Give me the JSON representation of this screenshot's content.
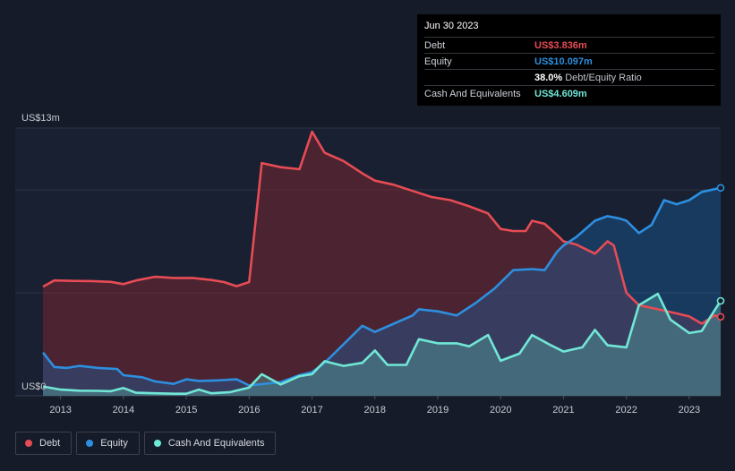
{
  "tooltip": {
    "date": "Jun 30 2023",
    "rows": [
      {
        "label": "Debt",
        "value": "US$3.836m",
        "color": "#e64c55"
      },
      {
        "label": "Equity",
        "value": "US$10.097m",
        "color": "#2d8fe0"
      },
      {
        "label": "",
        "value": "38.0%",
        "suffix": "Debt/Equity Ratio",
        "color": "#ffffff"
      },
      {
        "label": "Cash And Equivalents",
        "value": "US$4.609m",
        "color": "#71e7d6"
      }
    ]
  },
  "legend": [
    {
      "label": "Debt",
      "color": "#e64c55"
    },
    {
      "label": "Equity",
      "color": "#2d8fe0"
    },
    {
      "label": "Cash And Equivalents",
      "color": "#71e7d6"
    }
  ],
  "chart_data": {
    "type": "area",
    "title": "",
    "xlabel": "",
    "ylabel": "",
    "y_top_label": "US$13m",
    "y_bottom_label": "US$0",
    "ylim": [
      0,
      13
    ],
    "xlim": [
      2012.7,
      2023.5
    ],
    "x_ticks": [
      2013,
      2014,
      2015,
      2016,
      2017,
      2018,
      2019,
      2020,
      2021,
      2022,
      2023
    ],
    "grid": true,
    "legend_position": "bottom-left",
    "series": [
      {
        "name": "Debt",
        "color": "#e64c55",
        "points": [
          [
            2012.72,
            5.3
          ],
          [
            2012.9,
            5.6
          ],
          [
            2013.2,
            5.58
          ],
          [
            2013.5,
            5.57
          ],
          [
            2013.8,
            5.53
          ],
          [
            2014.0,
            5.42
          ],
          [
            2014.2,
            5.6
          ],
          [
            2014.5,
            5.78
          ],
          [
            2014.8,
            5.72
          ],
          [
            2015.1,
            5.72
          ],
          [
            2015.4,
            5.62
          ],
          [
            2015.6,
            5.52
          ],
          [
            2015.8,
            5.32
          ],
          [
            2016.0,
            5.52
          ],
          [
            2016.2,
            11.3
          ],
          [
            2016.5,
            11.1
          ],
          [
            2016.8,
            11.0
          ],
          [
            2017.0,
            12.82
          ],
          [
            2017.2,
            11.8
          ],
          [
            2017.5,
            11.4
          ],
          [
            2017.8,
            10.8
          ],
          [
            2018.0,
            10.45
          ],
          [
            2018.3,
            10.25
          ],
          [
            2018.6,
            9.95
          ],
          [
            2018.9,
            9.65
          ],
          [
            2019.2,
            9.5
          ],
          [
            2019.5,
            9.2
          ],
          [
            2019.8,
            8.85
          ],
          [
            2020.0,
            8.1
          ],
          [
            2020.2,
            8.0
          ],
          [
            2020.4,
            8.0
          ],
          [
            2020.5,
            8.5
          ],
          [
            2020.7,
            8.35
          ],
          [
            2020.9,
            7.8
          ],
          [
            2021.0,
            7.5
          ],
          [
            2021.2,
            7.35
          ],
          [
            2021.5,
            6.9
          ],
          [
            2021.7,
            7.5
          ],
          [
            2021.8,
            7.3
          ],
          [
            2022.0,
            5.0
          ],
          [
            2022.2,
            4.4
          ],
          [
            2022.5,
            4.2
          ],
          [
            2022.8,
            4.0
          ],
          [
            2023.0,
            3.85
          ],
          [
            2023.2,
            3.5
          ],
          [
            2023.4,
            3.9
          ],
          [
            2023.5,
            3.836
          ]
        ]
      },
      {
        "name": "Equity",
        "color": "#2d8fe0",
        "points": [
          [
            2012.72,
            2.1
          ],
          [
            2012.9,
            1.4
          ],
          [
            2013.1,
            1.35
          ],
          [
            2013.3,
            1.45
          ],
          [
            2013.6,
            1.35
          ],
          [
            2013.9,
            1.3
          ],
          [
            2014.0,
            1.0
          ],
          [
            2014.3,
            0.9
          ],
          [
            2014.5,
            0.7
          ],
          [
            2014.8,
            0.58
          ],
          [
            2015.0,
            0.8
          ],
          [
            2015.2,
            0.72
          ],
          [
            2015.5,
            0.75
          ],
          [
            2015.8,
            0.8
          ],
          [
            2016.0,
            0.5
          ],
          [
            2016.3,
            0.6
          ],
          [
            2016.5,
            0.66
          ],
          [
            2016.8,
            1.0
          ],
          [
            2017.0,
            1.15
          ],
          [
            2017.2,
            1.6
          ],
          [
            2017.5,
            2.5
          ],
          [
            2017.8,
            3.4
          ],
          [
            2018.0,
            3.1
          ],
          [
            2018.3,
            3.5
          ],
          [
            2018.6,
            3.9
          ],
          [
            2018.7,
            4.2
          ],
          [
            2019.0,
            4.1
          ],
          [
            2019.3,
            3.9
          ],
          [
            2019.6,
            4.5
          ],
          [
            2019.9,
            5.2
          ],
          [
            2020.0,
            5.5
          ],
          [
            2020.2,
            6.1
          ],
          [
            2020.5,
            6.15
          ],
          [
            2020.7,
            6.1
          ],
          [
            2020.9,
            7.0
          ],
          [
            2021.0,
            7.3
          ],
          [
            2021.2,
            7.7
          ],
          [
            2021.5,
            8.5
          ],
          [
            2021.7,
            8.72
          ],
          [
            2021.9,
            8.6
          ],
          [
            2022.0,
            8.5
          ],
          [
            2022.2,
            7.9
          ],
          [
            2022.4,
            8.3
          ],
          [
            2022.6,
            9.5
          ],
          [
            2022.8,
            9.3
          ],
          [
            2023.0,
            9.5
          ],
          [
            2023.2,
            9.9
          ],
          [
            2023.5,
            10.097
          ]
        ]
      },
      {
        "name": "Cash And Equivalents",
        "color": "#71e7d6",
        "points": [
          [
            2012.72,
            0.45
          ],
          [
            2013.0,
            0.3
          ],
          [
            2013.3,
            0.25
          ],
          [
            2013.6,
            0.24
          ],
          [
            2013.8,
            0.22
          ],
          [
            2014.0,
            0.38
          ],
          [
            2014.2,
            0.15
          ],
          [
            2014.5,
            0.12
          ],
          [
            2014.8,
            0.1
          ],
          [
            2015.0,
            0.1
          ],
          [
            2015.2,
            0.3
          ],
          [
            2015.4,
            0.12
          ],
          [
            2015.7,
            0.18
          ],
          [
            2016.0,
            0.4
          ],
          [
            2016.2,
            1.05
          ],
          [
            2016.5,
            0.55
          ],
          [
            2016.8,
            0.95
          ],
          [
            2017.0,
            1.05
          ],
          [
            2017.2,
            1.68
          ],
          [
            2017.5,
            1.45
          ],
          [
            2017.8,
            1.6
          ],
          [
            2018.0,
            2.2
          ],
          [
            2018.2,
            1.5
          ],
          [
            2018.5,
            1.5
          ],
          [
            2018.7,
            2.75
          ],
          [
            2019.0,
            2.55
          ],
          [
            2019.3,
            2.55
          ],
          [
            2019.5,
            2.4
          ],
          [
            2019.8,
            2.95
          ],
          [
            2020.0,
            1.7
          ],
          [
            2020.3,
            2.05
          ],
          [
            2020.5,
            2.95
          ],
          [
            2020.8,
            2.45
          ],
          [
            2021.0,
            2.15
          ],
          [
            2021.3,
            2.35
          ],
          [
            2021.5,
            3.2
          ],
          [
            2021.7,
            2.45
          ],
          [
            2022.0,
            2.35
          ],
          [
            2022.2,
            4.4
          ],
          [
            2022.5,
            4.95
          ],
          [
            2022.7,
            3.7
          ],
          [
            2023.0,
            3.05
          ],
          [
            2023.2,
            3.15
          ],
          [
            2023.35,
            3.9
          ],
          [
            2023.5,
            4.609
          ]
        ]
      }
    ]
  }
}
